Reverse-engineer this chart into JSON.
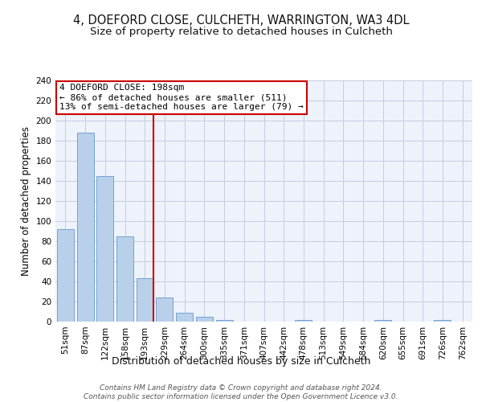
{
  "title_line1": "4, DOEFORD CLOSE, CULCHETH, WARRINGTON, WA3 4DL",
  "title_line2": "Size of property relative to detached houses in Culcheth",
  "xlabel": "Distribution of detached houses by size in Culcheth",
  "ylabel": "Number of detached properties",
  "categories": [
    "51sqm",
    "87sqm",
    "122sqm",
    "158sqm",
    "193sqm",
    "229sqm",
    "264sqm",
    "300sqm",
    "335sqm",
    "371sqm",
    "407sqm",
    "442sqm",
    "478sqm",
    "513sqm",
    "549sqm",
    "584sqm",
    "620sqm",
    "655sqm",
    "691sqm",
    "726sqm",
    "762sqm"
  ],
  "values": [
    92,
    188,
    145,
    85,
    43,
    24,
    9,
    5,
    2,
    0,
    0,
    0,
    2,
    0,
    0,
    0,
    2,
    0,
    0,
    2,
    0
  ],
  "bar_color": "#b8d0ea",
  "bar_edge_color": "#6699cc",
  "highlight_bar_index": 4,
  "highlight_color": "#cc0000",
  "annotation_text": "4 DOEFORD CLOSE: 198sqm\n← 86% of detached houses are smaller (511)\n13% of semi-detached houses are larger (79) →",
  "annotation_box_color": "#ffffff",
  "annotation_box_edge": "#cc0000",
  "ylim": [
    0,
    240
  ],
  "yticks": [
    0,
    20,
    40,
    60,
    80,
    100,
    120,
    140,
    160,
    180,
    200,
    220,
    240
  ],
  "footnote": "Contains HM Land Registry data © Crown copyright and database right 2024.\nContains public sector information licensed under the Open Government Licence v3.0.",
  "bg_color": "#eef2fb",
  "fig_bg": "#ffffff",
  "grid_color": "#c5cce0",
  "title_fontsize": 10.5,
  "subtitle_fontsize": 9.5,
  "ylabel_fontsize": 8.5,
  "xlabel_fontsize": 9,
  "tick_fontsize": 7.5,
  "annot_fontsize": 8,
  "footnote_fontsize": 6.5
}
